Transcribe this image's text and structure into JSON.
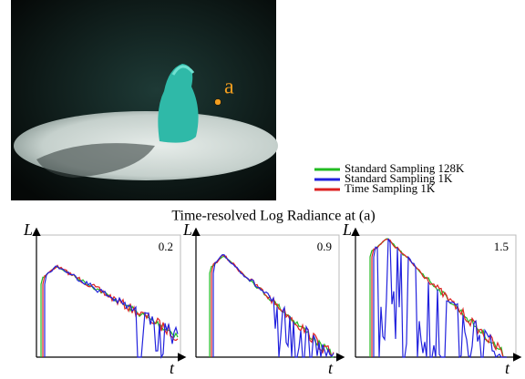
{
  "figure": {
    "point_label": "a",
    "legend": [
      "Standard Sampling 128K",
      "Standard Sampling 1K",
      "Time Sampling 1K"
    ],
    "caption": "Time-resolved Log Radiance at (a)",
    "panels": [
      {
        "y_label": "L",
        "x_label": "t",
        "time": 0.2
      },
      {
        "y_label": "L",
        "x_label": "t",
        "time": 0.9
      },
      {
        "y_label": "L",
        "x_label": "t",
        "time": 1.5
      }
    ]
  }
}
